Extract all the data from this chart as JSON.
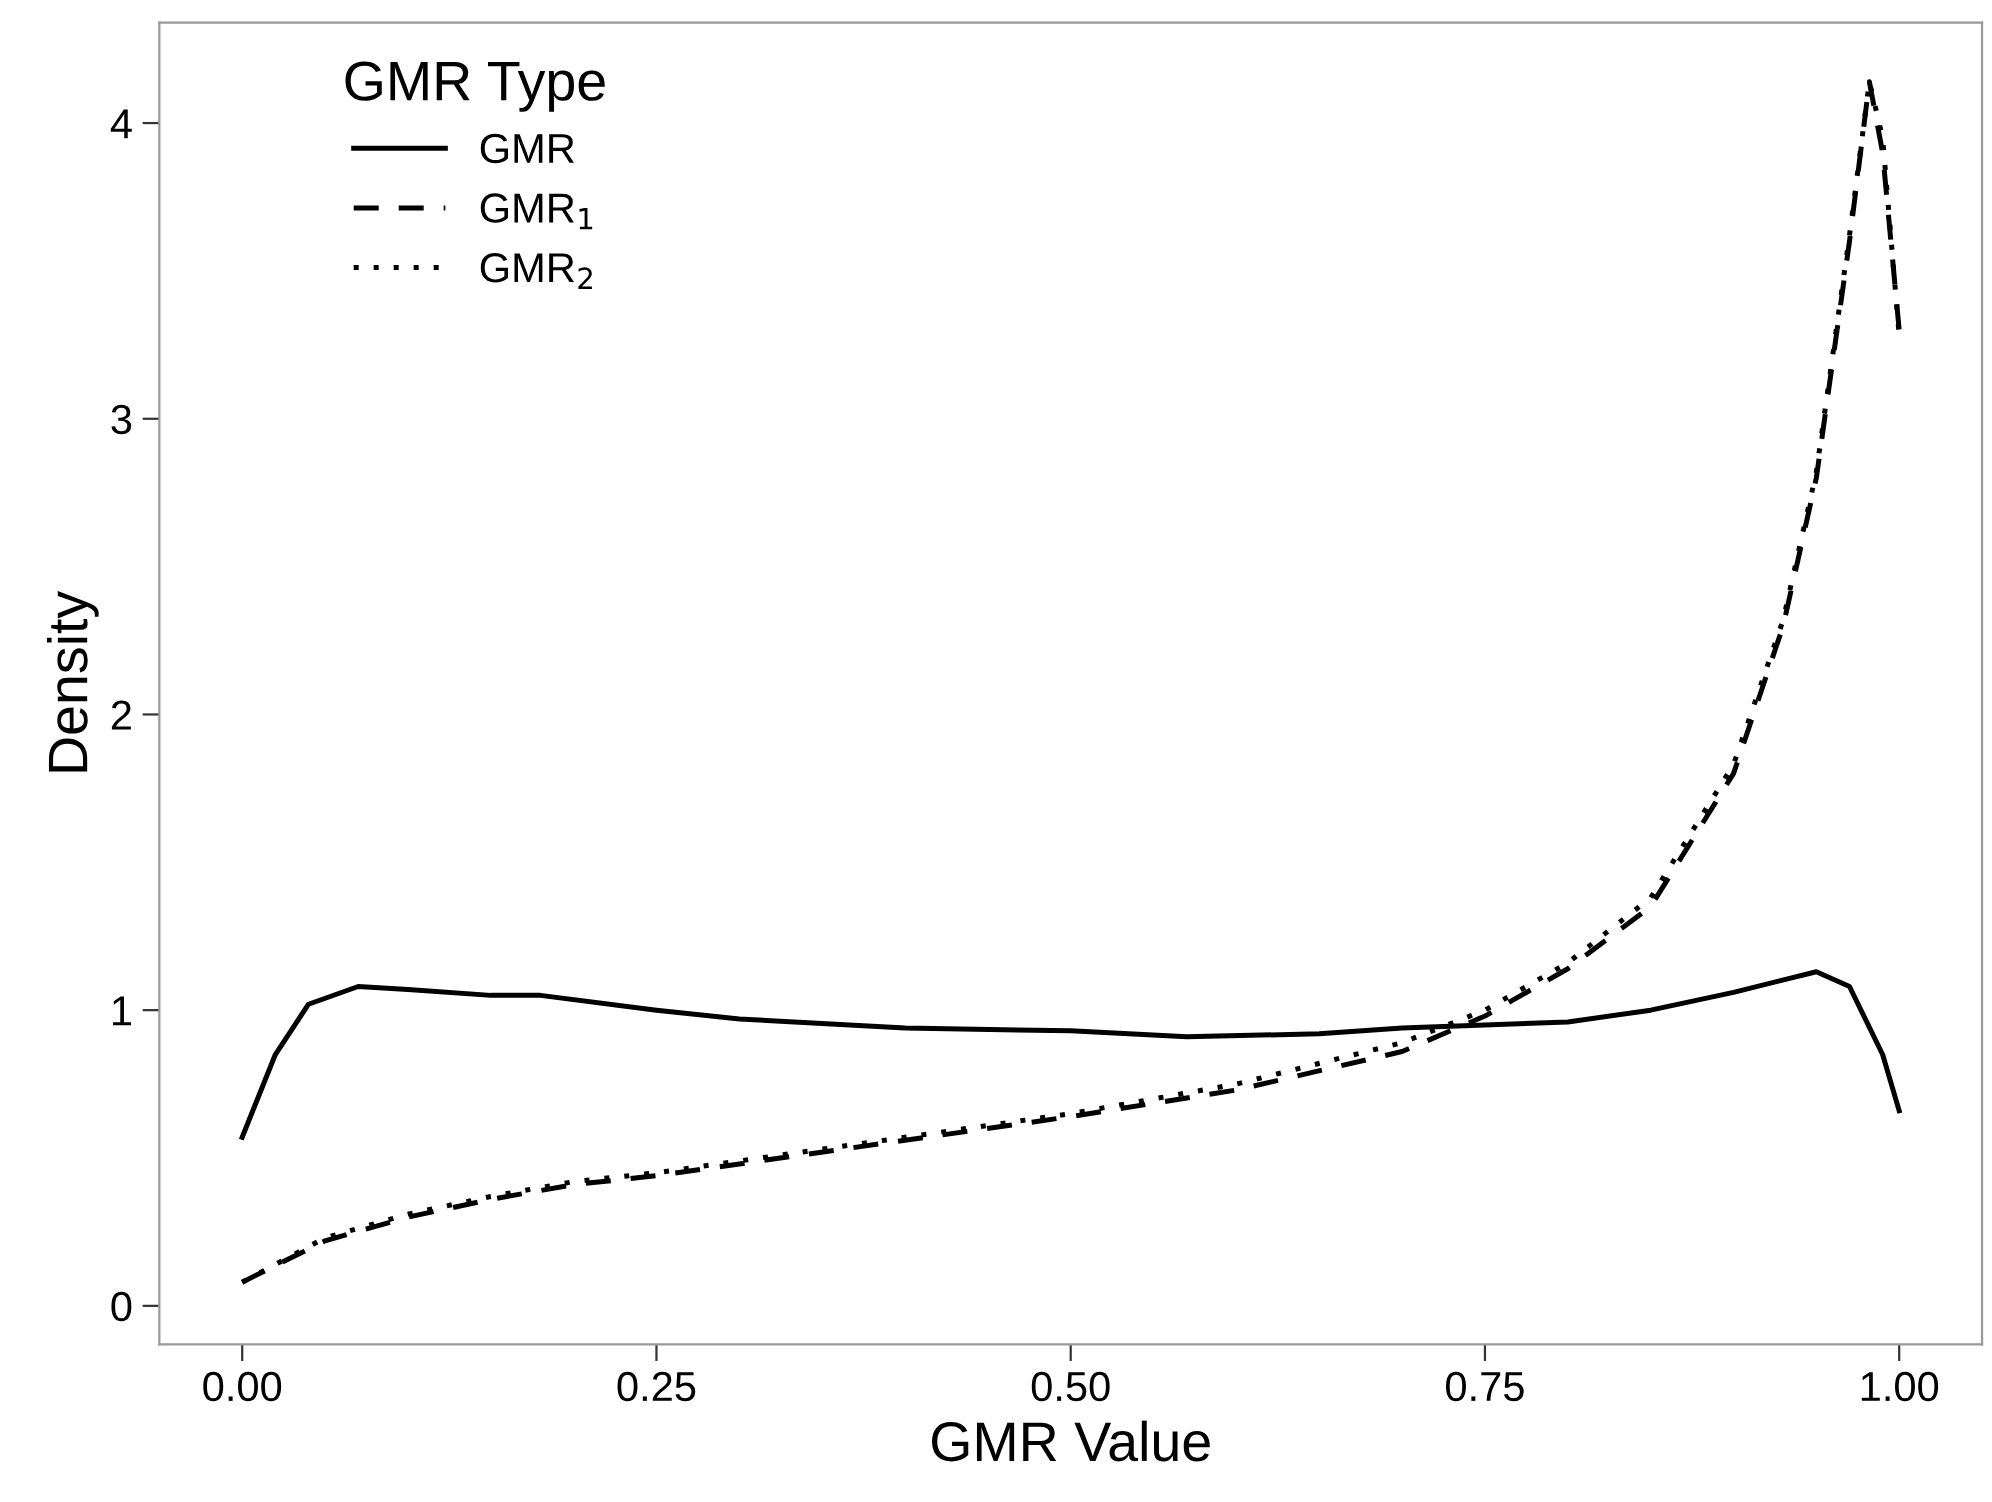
{
  "chart_data": {
    "type": "line",
    "xlabel": "GMR Value",
    "ylabel": "Density",
    "legend_title": "GMR Type",
    "legend": "top left",
    "grid": false,
    "marker": "none",
    "xlim": [
      -0.05,
      1.05
    ],
    "xticks": [
      {
        "value": 0,
        "label": "0.00"
      },
      {
        "value": 0.25,
        "label": "0.25"
      },
      {
        "value": 0.5,
        "label": "0.50"
      },
      {
        "value": 0.75,
        "label": "0.75"
      },
      {
        "value": 1,
        "label": "1.00"
      }
    ],
    "ylim": [
      -0.13,
      4.34
    ],
    "yticks": [
      0,
      1,
      2,
      3,
      4
    ],
    "series": [
      {
        "name": "GMR",
        "color": "#000000",
        "line_style": "solid",
        "x": [
          0,
          0.02,
          0.04,
          0.07,
          0.1,
          0.15,
          0.18,
          0.25,
          0.3,
          0.4,
          0.5,
          0.57,
          0.65,
          0.7,
          0.75,
          0.8,
          0.85,
          0.9,
          0.95,
          0.97,
          0.99,
          1.0
        ],
        "values": [
          0.57,
          0.85,
          1.02,
          1.08,
          1.07,
          1.05,
          1.05,
          1.0,
          0.97,
          0.94,
          0.93,
          0.91,
          0.92,
          0.94,
          0.95,
          0.96,
          1.0,
          1.06,
          1.13,
          1.08,
          0.85,
          0.66
        ]
      },
      {
        "name": "GMR$_{1}$",
        "color": "#000000",
        "line_style": "dashed",
        "x": [
          0,
          0.05,
          0.1,
          0.15,
          0.2,
          0.25,
          0.3,
          0.4,
          0.5,
          0.6,
          0.7,
          0.75,
          0.8,
          0.85,
          0.9,
          0.93,
          0.95,
          0.97,
          0.982,
          0.99,
          1.0
        ],
        "values": [
          0.08,
          0.22,
          0.3,
          0.36,
          0.41,
          0.44,
          0.48,
          0.56,
          0.64,
          0.73,
          0.86,
          0.98,
          1.14,
          1.35,
          1.8,
          2.3,
          2.8,
          3.6,
          4.14,
          3.9,
          3.3
        ]
      },
      {
        "name": "GMR$_{2}$",
        "color": "#000000",
        "line_style": "dotted",
        "x": [
          0,
          0.05,
          0.1,
          0.15,
          0.2,
          0.25,
          0.3,
          0.4,
          0.5,
          0.6,
          0.7,
          0.75,
          0.8,
          0.85,
          0.9,
          0.93,
          0.95,
          0.97,
          0.982,
          0.99,
          1.0
        ],
        "values": [
          0.08,
          0.23,
          0.31,
          0.37,
          0.42,
          0.45,
          0.49,
          0.57,
          0.65,
          0.75,
          0.89,
          1.0,
          1.16,
          1.38,
          1.83,
          2.32,
          2.82,
          3.62,
          4.14,
          3.95,
          3.28
        ]
      }
    ]
  }
}
